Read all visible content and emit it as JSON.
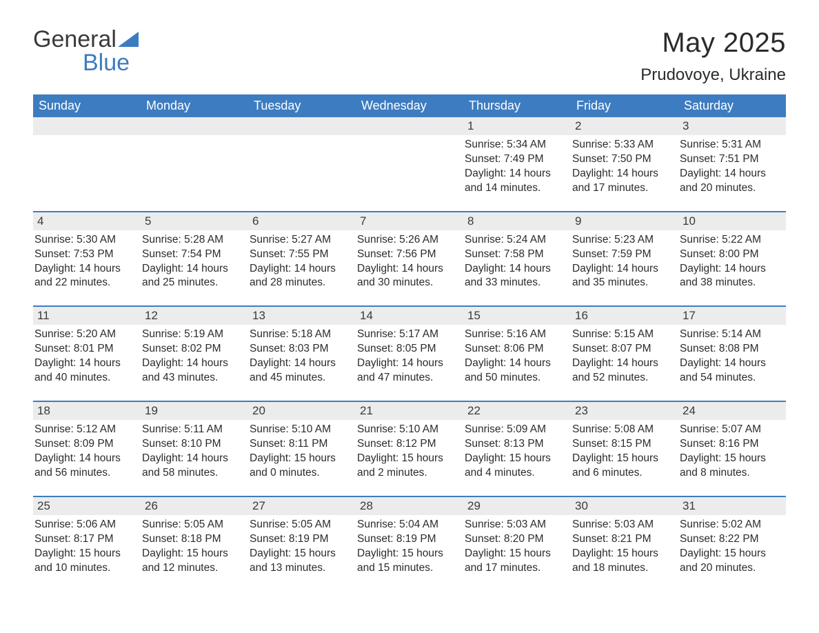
{
  "logo": {
    "word1": "General",
    "word2": "Blue",
    "mark_color": "#3d7cc0",
    "text_color": "#3a3a3a"
  },
  "title": "May 2025",
  "location": "Prudovoye, Ukraine",
  "colors": {
    "header_bg": "#3d7cc0",
    "header_text": "#ffffff",
    "daybar_bg": "#ececec",
    "rule": "#3d7cc0",
    "body_text": "#2b2b2b"
  },
  "weekdays": [
    "Sunday",
    "Monday",
    "Tuesday",
    "Wednesday",
    "Thursday",
    "Friday",
    "Saturday"
  ],
  "weeks": [
    [
      null,
      null,
      null,
      null,
      {
        "n": "1",
        "sunrise": "Sunrise: 5:34 AM",
        "sunset": "Sunset: 7:49 PM",
        "day1": "Daylight: 14 hours",
        "day2": "and 14 minutes."
      },
      {
        "n": "2",
        "sunrise": "Sunrise: 5:33 AM",
        "sunset": "Sunset: 7:50 PM",
        "day1": "Daylight: 14 hours",
        "day2": "and 17 minutes."
      },
      {
        "n": "3",
        "sunrise": "Sunrise: 5:31 AM",
        "sunset": "Sunset: 7:51 PM",
        "day1": "Daylight: 14 hours",
        "day2": "and 20 minutes."
      }
    ],
    [
      {
        "n": "4",
        "sunrise": "Sunrise: 5:30 AM",
        "sunset": "Sunset: 7:53 PM",
        "day1": "Daylight: 14 hours",
        "day2": "and 22 minutes."
      },
      {
        "n": "5",
        "sunrise": "Sunrise: 5:28 AM",
        "sunset": "Sunset: 7:54 PM",
        "day1": "Daylight: 14 hours",
        "day2": "and 25 minutes."
      },
      {
        "n": "6",
        "sunrise": "Sunrise: 5:27 AM",
        "sunset": "Sunset: 7:55 PM",
        "day1": "Daylight: 14 hours",
        "day2": "and 28 minutes."
      },
      {
        "n": "7",
        "sunrise": "Sunrise: 5:26 AM",
        "sunset": "Sunset: 7:56 PM",
        "day1": "Daylight: 14 hours",
        "day2": "and 30 minutes."
      },
      {
        "n": "8",
        "sunrise": "Sunrise: 5:24 AM",
        "sunset": "Sunset: 7:58 PM",
        "day1": "Daylight: 14 hours",
        "day2": "and 33 minutes."
      },
      {
        "n": "9",
        "sunrise": "Sunrise: 5:23 AM",
        "sunset": "Sunset: 7:59 PM",
        "day1": "Daylight: 14 hours",
        "day2": "and 35 minutes."
      },
      {
        "n": "10",
        "sunrise": "Sunrise: 5:22 AM",
        "sunset": "Sunset: 8:00 PM",
        "day1": "Daylight: 14 hours",
        "day2": "and 38 minutes."
      }
    ],
    [
      {
        "n": "11",
        "sunrise": "Sunrise: 5:20 AM",
        "sunset": "Sunset: 8:01 PM",
        "day1": "Daylight: 14 hours",
        "day2": "and 40 minutes."
      },
      {
        "n": "12",
        "sunrise": "Sunrise: 5:19 AM",
        "sunset": "Sunset: 8:02 PM",
        "day1": "Daylight: 14 hours",
        "day2": "and 43 minutes."
      },
      {
        "n": "13",
        "sunrise": "Sunrise: 5:18 AM",
        "sunset": "Sunset: 8:03 PM",
        "day1": "Daylight: 14 hours",
        "day2": "and 45 minutes."
      },
      {
        "n": "14",
        "sunrise": "Sunrise: 5:17 AM",
        "sunset": "Sunset: 8:05 PM",
        "day1": "Daylight: 14 hours",
        "day2": "and 47 minutes."
      },
      {
        "n": "15",
        "sunrise": "Sunrise: 5:16 AM",
        "sunset": "Sunset: 8:06 PM",
        "day1": "Daylight: 14 hours",
        "day2": "and 50 minutes."
      },
      {
        "n": "16",
        "sunrise": "Sunrise: 5:15 AM",
        "sunset": "Sunset: 8:07 PM",
        "day1": "Daylight: 14 hours",
        "day2": "and 52 minutes."
      },
      {
        "n": "17",
        "sunrise": "Sunrise: 5:14 AM",
        "sunset": "Sunset: 8:08 PM",
        "day1": "Daylight: 14 hours",
        "day2": "and 54 minutes."
      }
    ],
    [
      {
        "n": "18",
        "sunrise": "Sunrise: 5:12 AM",
        "sunset": "Sunset: 8:09 PM",
        "day1": "Daylight: 14 hours",
        "day2": "and 56 minutes."
      },
      {
        "n": "19",
        "sunrise": "Sunrise: 5:11 AM",
        "sunset": "Sunset: 8:10 PM",
        "day1": "Daylight: 14 hours",
        "day2": "and 58 minutes."
      },
      {
        "n": "20",
        "sunrise": "Sunrise: 5:10 AM",
        "sunset": "Sunset: 8:11 PM",
        "day1": "Daylight: 15 hours",
        "day2": "and 0 minutes."
      },
      {
        "n": "21",
        "sunrise": "Sunrise: 5:10 AM",
        "sunset": "Sunset: 8:12 PM",
        "day1": "Daylight: 15 hours",
        "day2": "and 2 minutes."
      },
      {
        "n": "22",
        "sunrise": "Sunrise: 5:09 AM",
        "sunset": "Sunset: 8:13 PM",
        "day1": "Daylight: 15 hours",
        "day2": "and 4 minutes."
      },
      {
        "n": "23",
        "sunrise": "Sunrise: 5:08 AM",
        "sunset": "Sunset: 8:15 PM",
        "day1": "Daylight: 15 hours",
        "day2": "and 6 minutes."
      },
      {
        "n": "24",
        "sunrise": "Sunrise: 5:07 AM",
        "sunset": "Sunset: 8:16 PM",
        "day1": "Daylight: 15 hours",
        "day2": "and 8 minutes."
      }
    ],
    [
      {
        "n": "25",
        "sunrise": "Sunrise: 5:06 AM",
        "sunset": "Sunset: 8:17 PM",
        "day1": "Daylight: 15 hours",
        "day2": "and 10 minutes."
      },
      {
        "n": "26",
        "sunrise": "Sunrise: 5:05 AM",
        "sunset": "Sunset: 8:18 PM",
        "day1": "Daylight: 15 hours",
        "day2": "and 12 minutes."
      },
      {
        "n": "27",
        "sunrise": "Sunrise: 5:05 AM",
        "sunset": "Sunset: 8:19 PM",
        "day1": "Daylight: 15 hours",
        "day2": "and 13 minutes."
      },
      {
        "n": "28",
        "sunrise": "Sunrise: 5:04 AM",
        "sunset": "Sunset: 8:19 PM",
        "day1": "Daylight: 15 hours",
        "day2": "and 15 minutes."
      },
      {
        "n": "29",
        "sunrise": "Sunrise: 5:03 AM",
        "sunset": "Sunset: 8:20 PM",
        "day1": "Daylight: 15 hours",
        "day2": "and 17 minutes."
      },
      {
        "n": "30",
        "sunrise": "Sunrise: 5:03 AM",
        "sunset": "Sunset: 8:21 PM",
        "day1": "Daylight: 15 hours",
        "day2": "and 18 minutes."
      },
      {
        "n": "31",
        "sunrise": "Sunrise: 5:02 AM",
        "sunset": "Sunset: 8:22 PM",
        "day1": "Daylight: 15 hours",
        "day2": "and 20 minutes."
      }
    ]
  ]
}
